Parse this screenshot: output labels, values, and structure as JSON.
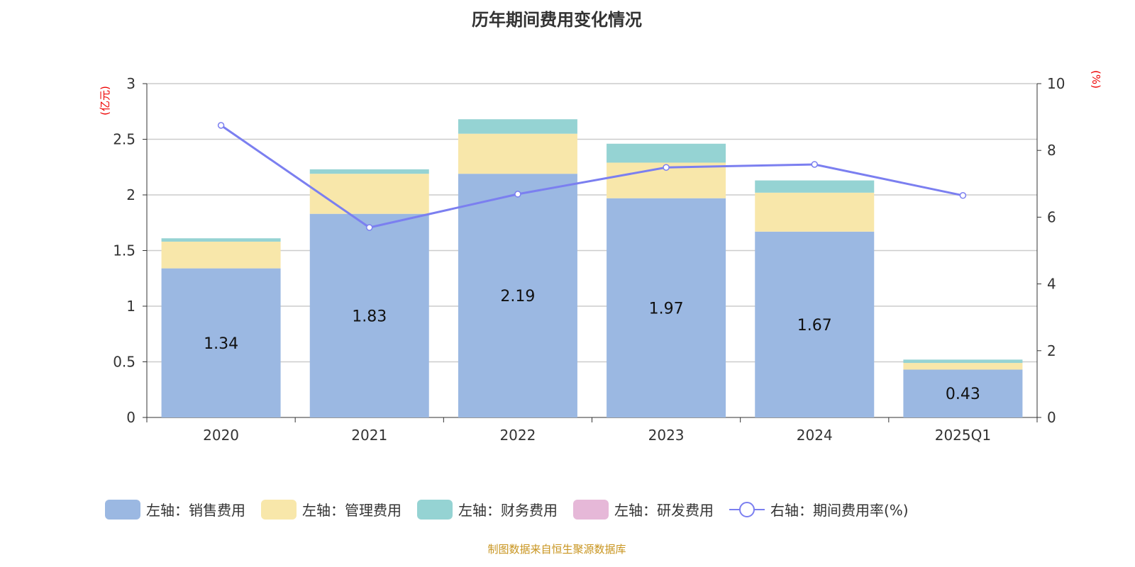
{
  "title": "历年期间费用变化情况",
  "source": "制图数据来自恒生聚源数据库",
  "chart_data": {
    "type": "bar",
    "stacked": true,
    "categories": [
      "2020",
      "2021",
      "2022",
      "2023",
      "2024",
      "2025Q1"
    ],
    "left_axis": {
      "label": "(亿元)",
      "ylim": [
        0,
        3
      ],
      "ticks": [
        "0",
        "0.5",
        "1",
        "1.5",
        "2",
        "2.5",
        "3"
      ],
      "tick_values": [
        0,
        0.5,
        1,
        1.5,
        2,
        2.5,
        3
      ]
    },
    "right_axis": {
      "label": "(%)",
      "ylim": [
        0,
        10
      ],
      "ticks": [
        "0",
        "2",
        "4",
        "6",
        "8",
        "10"
      ],
      "tick_values": [
        0,
        2,
        4,
        6,
        8,
        10
      ]
    },
    "series": [
      {
        "name": "左轴：销售费用",
        "color": "#9bb8e2",
        "axis": "left",
        "values": [
          1.34,
          1.83,
          2.19,
          1.97,
          1.67,
          0.43
        ],
        "labels": [
          "1.34",
          "1.83",
          "2.19",
          "1.97",
          "1.67",
          "0.43"
        ]
      },
      {
        "name": "左轴：管理费用",
        "color": "#f8e7aa",
        "axis": "left",
        "values": [
          0.24,
          0.36,
          0.36,
          0.32,
          0.35,
          0.06
        ]
      },
      {
        "name": "左轴：财务费用",
        "color": "#95d3d3",
        "axis": "left",
        "values": [
          0.03,
          0.04,
          0.13,
          0.17,
          0.11,
          0.03
        ]
      },
      {
        "name": "左轴：研发费用",
        "color": "#e6b8d8",
        "axis": "left",
        "values": [
          0,
          0,
          0,
          0,
          0,
          0
        ]
      },
      {
        "name": "右轴：期间费用率(%)",
        "color": "#7b7ff0",
        "axis": "right",
        "type": "line",
        "values": [
          8.75,
          5.69,
          6.69,
          7.49,
          7.58,
          6.65
        ]
      }
    ],
    "grid": true,
    "legend_position": "bottom"
  }
}
